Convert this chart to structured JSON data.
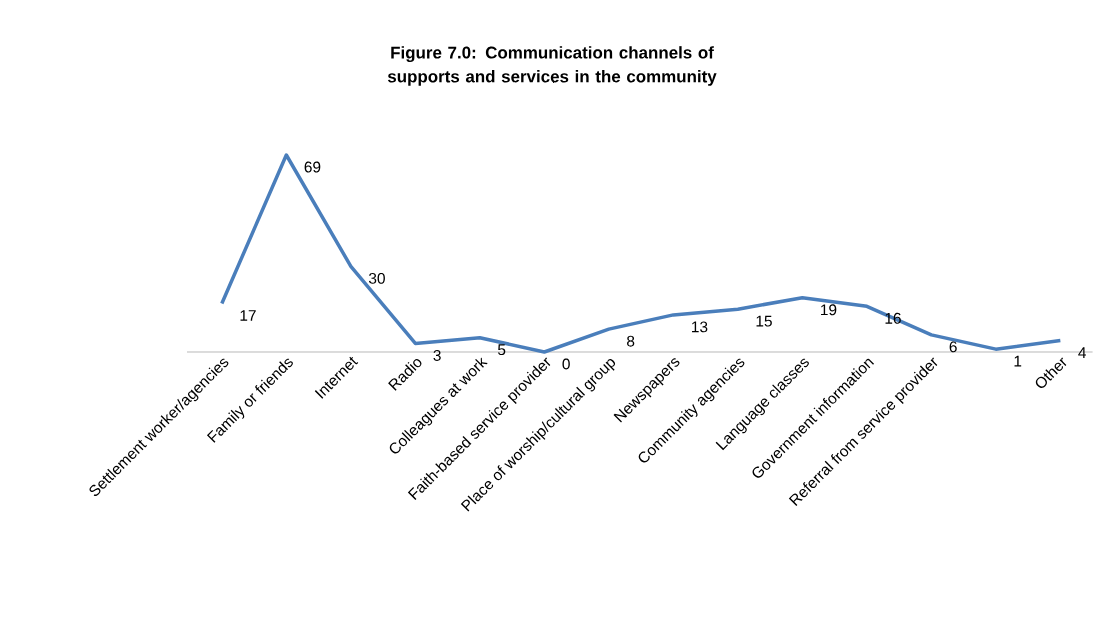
{
  "chart_data": {
    "type": "line",
    "title": "Figure 7.0: Communication channels of supports and services in the community",
    "categories": [
      "Settlement worker/agencies",
      "Family or friends",
      "Internet",
      "Radio",
      "Colleagues at work",
      "Faith-based service provider",
      "Place of worship/cultural group",
      "Newspapers",
      "Community agencies",
      "Language classes",
      "Government information",
      "Referral from service provider",
      null,
      "Other"
    ],
    "values": [
      17,
      69,
      30,
      3,
      5,
      0,
      8,
      13,
      15,
      19,
      16,
      6,
      1,
      4
    ],
    "color": "#4a7ebb",
    "data_labels": true
  }
}
